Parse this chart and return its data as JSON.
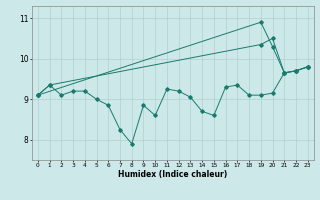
{
  "title": "",
  "xlabel": "Humidex (Indice chaleur)",
  "bg_color": "#cce8e8",
  "line_color": "#1a7a6e",
  "xlim": [
    -0.5,
    23.5
  ],
  "ylim": [
    7.5,
    11.3
  ],
  "yticks": [
    8,
    9,
    10,
    11
  ],
  "xticks": [
    0,
    1,
    2,
    3,
    4,
    5,
    6,
    7,
    8,
    9,
    10,
    11,
    12,
    13,
    14,
    15,
    16,
    17,
    18,
    19,
    20,
    21,
    22,
    23
  ],
  "series1_x": [
    0,
    1,
    2,
    3,
    4,
    5,
    6,
    7,
    8,
    9,
    10,
    11,
    12,
    13,
    14,
    15,
    16,
    17,
    18,
    19,
    20,
    21,
    22,
    23
  ],
  "series1_y": [
    9.1,
    9.35,
    9.1,
    9.2,
    9.2,
    9.0,
    8.85,
    8.25,
    7.9,
    8.85,
    8.6,
    9.25,
    9.2,
    9.05,
    8.7,
    8.6,
    9.3,
    9.35,
    9.1,
    9.1,
    9.15,
    9.65,
    9.7,
    9.8
  ],
  "series2_x": [
    0,
    1,
    19,
    20,
    21,
    22,
    23
  ],
  "series2_y": [
    9.1,
    9.35,
    10.35,
    10.5,
    9.65,
    9.7,
    9.8
  ],
  "series3_x": [
    0,
    19,
    20,
    21,
    22,
    23
  ],
  "series3_y": [
    9.1,
    10.9,
    10.3,
    9.65,
    9.7,
    9.8
  ]
}
